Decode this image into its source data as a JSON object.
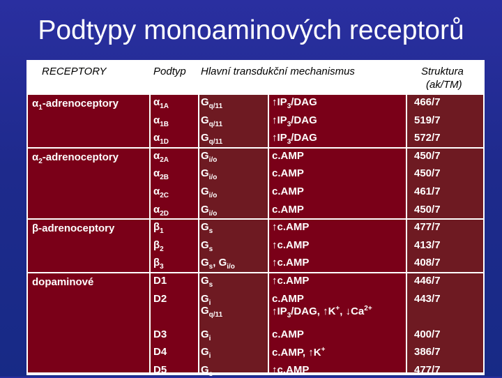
{
  "title": "Podtypy monoaminových receptorů",
  "headers": {
    "receptor": "RECEPTORY",
    "subtype": "Podtyp",
    "mechanism": "Hlavní transdukční mechanismus",
    "structure_line1": "Struktura",
    "structure_line2": "(ak/TM)"
  },
  "groups": [
    {
      "receptor_sym": "α",
      "receptor_sub": "1",
      "receptor_rest": "-adrenoceptory"
    },
    {
      "receptor_sym": "α",
      "receptor_sub": "2",
      "receptor_rest": "-adrenoceptory"
    },
    {
      "receptor_sym": "β",
      "receptor_sub": "",
      "receptor_rest": "-adrenoceptory"
    },
    {
      "receptor_sym": "",
      "receptor_sub": "",
      "receptor_rest": "dopaminové"
    }
  ],
  "rows": [
    {
      "sub_sym": "α",
      "sub_idx": "1A",
      "g": "G",
      "g_idx": "q/11",
      "g2": "",
      "g2_idx": "",
      "mech": "↑IP",
      "mech_idx": "3",
      "mech_rest": "/DAG",
      "mech_line2": "",
      "struct": "466/7"
    },
    {
      "sub_sym": "α",
      "sub_idx": "1B",
      "g": "G",
      "g_idx": "q/11",
      "g2": "",
      "g2_idx": "",
      "mech": "↑IP",
      "mech_idx": "3",
      "mech_rest": "/DAG",
      "mech_line2": "",
      "struct": "519/7"
    },
    {
      "sub_sym": "α",
      "sub_idx": "1D",
      "g": "G",
      "g_idx": "q/11",
      "g2": "",
      "g2_idx": "",
      "mech": "↑IP",
      "mech_idx": "3",
      "mech_rest": "/DAG",
      "mech_line2": "",
      "struct": "572/7"
    },
    {
      "sub_sym": "α",
      "sub_idx": "2A",
      "g": "G",
      "g_idx": "i/o",
      "g2": "",
      "g2_idx": "",
      "mech": "c.AMP",
      "mech_idx": "",
      "mech_rest": "",
      "mech_line2": "",
      "struct": "450/7"
    },
    {
      "sub_sym": "α",
      "sub_idx": "2B",
      "g": "G",
      "g_idx": "i/o",
      "g2": "",
      "g2_idx": "",
      "mech": "c.AMP",
      "mech_idx": "",
      "mech_rest": "",
      "mech_line2": "",
      "struct": "450/7"
    },
    {
      "sub_sym": "α",
      "sub_idx": "2C",
      "g": "G",
      "g_idx": "i/o",
      "g2": "",
      "g2_idx": "",
      "mech": "c.AMP",
      "mech_idx": "",
      "mech_rest": "",
      "mech_line2": "",
      "struct": "461/7"
    },
    {
      "sub_sym": "α",
      "sub_idx": "2D",
      "g": "G",
      "g_idx": "i/o",
      "g2": "",
      "g2_idx": "",
      "mech": "c.AMP",
      "mech_idx": "",
      "mech_rest": "",
      "mech_line2": "",
      "struct": "450/7"
    },
    {
      "sub_sym": "β",
      "sub_idx": "1",
      "g": "G",
      "g_idx": "s",
      "g2": "",
      "g2_idx": "",
      "mech": "↑c.AMP",
      "mech_idx": "",
      "mech_rest": "",
      "mech_line2": "",
      "struct": "477/7"
    },
    {
      "sub_sym": "β",
      "sub_idx": "2",
      "g": "G",
      "g_idx": "s",
      "g2": "",
      "g2_idx": "",
      "mech": "↑c.AMP",
      "mech_idx": "",
      "mech_rest": "",
      "mech_line2": "",
      "struct": "413/7"
    },
    {
      "sub_sym": "β",
      "sub_idx": "3",
      "g": "G",
      "g_idx": "s",
      "g2": ", G",
      "g2_idx": "i/o",
      "mech": "↑c.AMP",
      "mech_idx": "",
      "mech_rest": "",
      "mech_line2": "",
      "struct": "408/7"
    },
    {
      "sub_sym": "D1",
      "sub_idx": "",
      "g": "G",
      "g_idx": "s",
      "g2": "",
      "g2_idx": "",
      "mech": "↑c.AMP",
      "mech_idx": "",
      "mech_rest": "",
      "mech_line2": "",
      "struct": "446/7"
    },
    {
      "sub_sym": "D2",
      "sub_idx": "",
      "g": "G",
      "g_idx": "i",
      "g2": "",
      "g2_idx": "",
      "mech": "c.AMP",
      "mech_idx": "",
      "mech_rest": "",
      "mech_line2": "",
      "struct": "443/7"
    },
    {
      "sub_sym": "D3",
      "sub_idx": "",
      "g": "G",
      "g_idx": "i",
      "g2": "",
      "g2_idx": "",
      "mech": "c.AMP",
      "mech_idx": "",
      "mech_rest": "",
      "mech_line2": "",
      "struct": "400/7"
    },
    {
      "sub_sym": "D4",
      "sub_idx": "",
      "g": "G",
      "g_idx": "i",
      "g2": "",
      "g2_idx": "",
      "mech": "c.AMP, ↑K",
      "mech_idx": "",
      "mech_rest": "+",
      "mech_line2": "",
      "struct": "386/7"
    },
    {
      "sub_sym": "D5",
      "sub_idx": "",
      "g": "G",
      "g_idx": "s",
      "g2": "",
      "g2_idx": "",
      "mech": "↑c.AMP",
      "mech_idx": "",
      "mech_rest": "",
      "mech_line2": "",
      "struct": "477/7"
    }
  ],
  "d2_extra": {
    "g": "G",
    "g_idx": "q/11",
    "mech_pre": "↑IP",
    "mech_idx": "3",
    "mech_mid": "/DAG, ↑K",
    "mech_sup1": "+",
    "mech_mid2": ", ↓Ca",
    "mech_sup2": "2+"
  },
  "colors": {
    "cell_red": "#7a0018",
    "cell_brown": "#6e1a22",
    "background": "#1e2a8c"
  }
}
